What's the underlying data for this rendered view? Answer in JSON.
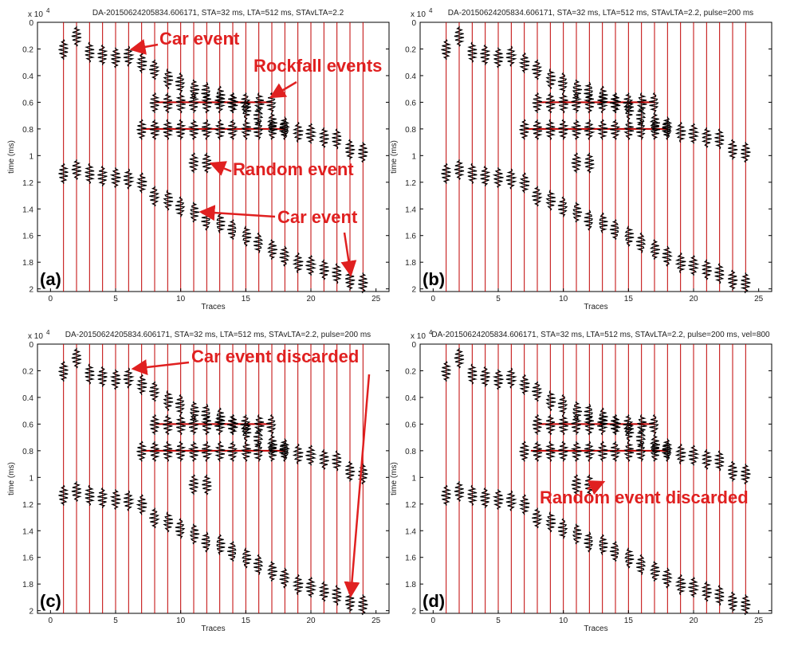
{
  "chart_data": [
    {
      "type": "trace",
      "title": "DA-20150624205834.606171, STA=32 ms, LTA=512 ms, STAvLTA=2.2",
      "panel_label": "(a)",
      "xlabel": "Traces",
      "ylabel": "time (ms)",
      "y_exp_base": "x 10",
      "y_exp": "4",
      "y_reversed": true,
      "xlim": [
        -1,
        26
      ],
      "ylim": [
        0,
        2.02
      ],
      "xticks": [
        0,
        5,
        10,
        15,
        20,
        25
      ],
      "yticks": [
        0,
        0.2,
        0.4,
        0.6,
        0.8,
        1,
        1.2,
        1.4,
        1.6,
        1.8,
        2
      ],
      "trace_color": "#c00000",
      "color": "#000000",
      "traces": [
        1,
        2,
        3,
        4,
        5,
        6,
        7,
        8,
        9,
        10,
        11,
        12,
        13,
        14,
        15,
        16,
        17,
        18,
        19,
        20,
        21,
        22,
        23,
        24
      ],
      "series": [
        {
          "x": [
            1,
            2,
            3,
            4,
            5,
            6,
            7,
            8,
            9,
            10,
            11,
            12,
            13,
            14,
            15,
            16,
            17,
            18,
            19,
            20,
            21,
            22,
            23,
            24
          ],
          "y": [
            0.2,
            0.1,
            0.22,
            0.24,
            0.26,
            0.25,
            0.3,
            0.35,
            0.42,
            0.45,
            0.5,
            0.52,
            0.55,
            0.6,
            0.65,
            0.7,
            0.75,
            0.78,
            0.82,
            0.83,
            0.86,
            0.87,
            0.95,
            0.97
          ]
        },
        {
          "x": [
            1,
            2,
            3,
            4,
            5,
            6,
            7,
            8,
            9,
            10,
            11,
            12,
            13,
            14,
            15,
            16,
            17,
            18,
            19,
            20,
            21,
            22,
            23,
            24
          ],
          "y": [
            1.13,
            1.1,
            1.13,
            1.15,
            1.16,
            1.17,
            1.2,
            1.3,
            1.33,
            1.38,
            1.42,
            1.48,
            1.5,
            1.55,
            1.6,
            1.65,
            1.7,
            1.75,
            1.8,
            1.82,
            1.85,
            1.88,
            1.93,
            1.95
          ]
        },
        {
          "x": [
            8,
            9,
            10,
            11,
            12,
            13,
            14,
            15,
            16,
            17
          ],
          "y": [
            0.6,
            0.6,
            0.6,
            0.6,
            0.6,
            0.6,
            0.6,
            0.6,
            0.6,
            0.6
          ]
        },
        {
          "x": [
            7,
            8,
            9,
            10,
            11,
            12,
            13,
            14,
            15,
            16,
            17,
            18
          ],
          "y": [
            0.8,
            0.8,
            0.8,
            0.8,
            0.8,
            0.8,
            0.8,
            0.8,
            0.8,
            0.8,
            0.8,
            0.8
          ]
        },
        {
          "x": [
            11,
            12
          ],
          "y": [
            1.05,
            1.05
          ]
        }
      ],
      "hlines": [
        {
          "y": 0.6,
          "x": [
            8,
            17
          ]
        },
        {
          "y": 0.8,
          "x": [
            7,
            18
          ]
        }
      ],
      "annotations": [
        {
          "text": "Car event"
        },
        {
          "text": "Rockfall events"
        },
        {
          "text": "Random event"
        },
        {
          "text": "Car event"
        }
      ]
    },
    {
      "type": "trace",
      "title": "DA-20150624205834.606171, STA=32 ms, LTA=512 ms, STAvLTA=2.2, pulse=200 ms",
      "panel_label": "(b)",
      "xlabel": "Traces",
      "ylabel": "time (ms)",
      "y_exp_base": "x 10",
      "y_exp": "4",
      "y_reversed": true,
      "xlim": [
        -1,
        26
      ],
      "ylim": [
        0,
        2.02
      ],
      "xticks": [
        0,
        5,
        10,
        15,
        20,
        25
      ],
      "yticks": [
        0,
        0.2,
        0.4,
        0.6,
        0.8,
        1,
        1.2,
        1.4,
        1.6,
        1.8,
        2
      ],
      "trace_color": "#c00000",
      "color": "#000000",
      "traces": [
        1,
        2,
        3,
        4,
        5,
        6,
        7,
        8,
        9,
        10,
        11,
        12,
        13,
        14,
        15,
        16,
        17,
        18,
        19,
        20,
        21,
        22,
        23,
        24
      ],
      "series": [
        {
          "x": [
            1,
            2,
            3,
            4,
            5,
            6,
            7,
            8,
            9,
            10,
            11,
            12,
            13,
            14,
            15,
            16,
            17,
            18,
            19,
            20,
            21,
            22,
            23,
            24
          ],
          "y": [
            0.2,
            0.1,
            0.22,
            0.24,
            0.26,
            0.25,
            0.3,
            0.35,
            0.42,
            0.45,
            0.5,
            0.52,
            0.55,
            0.6,
            0.65,
            0.7,
            0.75,
            0.78,
            0.82,
            0.83,
            0.86,
            0.87,
            0.95,
            0.97
          ]
        },
        {
          "x": [
            1,
            2,
            3,
            4,
            5,
            6,
            7,
            8,
            9,
            10,
            11,
            12,
            13,
            14,
            15,
            16,
            17,
            18,
            19,
            20,
            21,
            22,
            23,
            24
          ],
          "y": [
            1.13,
            1.1,
            1.13,
            1.15,
            1.16,
            1.17,
            1.2,
            1.3,
            1.33,
            1.38,
            1.42,
            1.48,
            1.5,
            1.55,
            1.6,
            1.65,
            1.7,
            1.75,
            1.8,
            1.82,
            1.85,
            1.88,
            1.93,
            1.95
          ]
        },
        {
          "x": [
            8,
            9,
            10,
            11,
            12,
            13,
            14,
            15,
            16,
            17
          ],
          "y": [
            0.6,
            0.6,
            0.6,
            0.6,
            0.6,
            0.6,
            0.6,
            0.6,
            0.6,
            0.6
          ]
        },
        {
          "x": [
            7,
            8,
            9,
            10,
            11,
            12,
            13,
            14,
            15,
            16,
            17,
            18
          ],
          "y": [
            0.8,
            0.8,
            0.8,
            0.8,
            0.8,
            0.8,
            0.8,
            0.8,
            0.8,
            0.8,
            0.8,
            0.8
          ]
        },
        {
          "x": [
            11,
            12
          ],
          "y": [
            1.05,
            1.05
          ]
        }
      ],
      "hlines": [
        {
          "y": 0.6,
          "x": [
            8,
            17
          ]
        },
        {
          "y": 0.8,
          "x": [
            7,
            18
          ]
        }
      ],
      "annotations": []
    },
    {
      "type": "trace",
      "title": "DA-20150624205834.606171, STA=32 ms, LTA=512 ms, STAvLTA=2.2, pulse=200 ms",
      "panel_label": "(c)",
      "xlabel": "Traces",
      "ylabel": "time (ms)",
      "y_exp_base": "x 10",
      "y_exp": "4",
      "y_reversed": true,
      "xlim": [
        -1,
        26
      ],
      "ylim": [
        0,
        2.02
      ],
      "xticks": [
        0,
        5,
        10,
        15,
        20,
        25
      ],
      "yticks": [
        0,
        0.2,
        0.4,
        0.6,
        0.8,
        1,
        1.2,
        1.4,
        1.6,
        1.8,
        2
      ],
      "trace_color": "#c00000",
      "color": "#000000",
      "traces": [
        1,
        2,
        3,
        4,
        5,
        6,
        7,
        8,
        9,
        10,
        11,
        12,
        13,
        14,
        15,
        16,
        17,
        18,
        19,
        20,
        21,
        22,
        23,
        24
      ],
      "series": [
        {
          "x": [
            1,
            2,
            3,
            4,
            5,
            6,
            7,
            8,
            9,
            10,
            11,
            12,
            13,
            14,
            15,
            16,
            17,
            18,
            19,
            20,
            21,
            22,
            23,
            24
          ],
          "y": [
            0.2,
            0.1,
            0.22,
            0.24,
            0.26,
            0.25,
            0.3,
            0.35,
            0.42,
            0.45,
            0.5,
            0.52,
            0.55,
            0.6,
            0.65,
            0.7,
            0.75,
            0.78,
            0.82,
            0.83,
            0.86,
            0.87,
            0.95,
            0.97
          ]
        },
        {
          "x": [
            1,
            2,
            3,
            4,
            5,
            6,
            7,
            8,
            9,
            10,
            11,
            12,
            13,
            14,
            15,
            16,
            17,
            18,
            19,
            20,
            21,
            22,
            23,
            24
          ],
          "y": [
            1.13,
            1.1,
            1.13,
            1.15,
            1.16,
            1.17,
            1.2,
            1.3,
            1.33,
            1.38,
            1.42,
            1.48,
            1.5,
            1.55,
            1.6,
            1.65,
            1.7,
            1.75,
            1.8,
            1.82,
            1.85,
            1.88,
            1.93,
            1.95
          ]
        },
        {
          "x": [
            8,
            9,
            10,
            11,
            12,
            13,
            14,
            15,
            16,
            17
          ],
          "y": [
            0.6,
            0.6,
            0.6,
            0.6,
            0.6,
            0.6,
            0.6,
            0.6,
            0.6,
            0.6
          ]
        },
        {
          "x": [
            7,
            8,
            9,
            10,
            11,
            12,
            13,
            14,
            15,
            16,
            17,
            18
          ],
          "y": [
            0.8,
            0.8,
            0.8,
            0.8,
            0.8,
            0.8,
            0.8,
            0.8,
            0.8,
            0.8,
            0.8,
            0.8
          ]
        },
        {
          "x": [
            11,
            12
          ],
          "y": [
            1.05,
            1.05
          ]
        }
      ],
      "hlines": [
        {
          "y": 0.6,
          "x": [
            8,
            17
          ]
        },
        {
          "y": 0.8,
          "x": [
            7,
            18
          ]
        }
      ],
      "annotations": [
        {
          "text": "Car event discarded"
        }
      ]
    },
    {
      "type": "trace",
      "title": "DA-20150624205834.606171, STA=32 ms, LTA=512 ms, STAvLTA=2.2, pulse=200 ms, vel=800",
      "panel_label": "(d)",
      "xlabel": "Traces",
      "ylabel": "time (ms)",
      "y_exp_base": "x 10",
      "y_exp": "4",
      "y_reversed": true,
      "xlim": [
        -1,
        26
      ],
      "ylim": [
        0,
        2.02
      ],
      "xticks": [
        0,
        5,
        10,
        15,
        20,
        25
      ],
      "yticks": [
        0,
        0.2,
        0.4,
        0.6,
        0.8,
        1,
        1.2,
        1.4,
        1.6,
        1.8,
        2
      ],
      "trace_color": "#c00000",
      "color": "#000000",
      "traces": [
        1,
        2,
        3,
        4,
        5,
        6,
        7,
        8,
        9,
        10,
        11,
        12,
        13,
        14,
        15,
        16,
        17,
        18,
        19,
        20,
        21,
        22,
        23,
        24
      ],
      "series": [
        {
          "x": [
            1,
            2,
            3,
            4,
            5,
            6,
            7,
            8,
            9,
            10,
            11,
            12,
            13,
            14,
            15,
            16,
            17,
            18,
            19,
            20,
            21,
            22,
            23,
            24
          ],
          "y": [
            0.2,
            0.1,
            0.22,
            0.24,
            0.26,
            0.25,
            0.3,
            0.35,
            0.42,
            0.45,
            0.5,
            0.52,
            0.55,
            0.6,
            0.65,
            0.7,
            0.75,
            0.78,
            0.82,
            0.83,
            0.86,
            0.87,
            0.95,
            0.97
          ]
        },
        {
          "x": [
            1,
            2,
            3,
            4,
            5,
            6,
            7,
            8,
            9,
            10,
            11,
            12,
            13,
            14,
            15,
            16,
            17,
            18,
            19,
            20,
            21,
            22,
            23,
            24
          ],
          "y": [
            1.13,
            1.1,
            1.13,
            1.15,
            1.16,
            1.17,
            1.2,
            1.3,
            1.33,
            1.38,
            1.42,
            1.48,
            1.5,
            1.55,
            1.6,
            1.65,
            1.7,
            1.75,
            1.8,
            1.82,
            1.85,
            1.88,
            1.93,
            1.95
          ]
        },
        {
          "x": [
            8,
            9,
            10,
            11,
            12,
            13,
            14,
            15,
            16,
            17
          ],
          "y": [
            0.6,
            0.6,
            0.6,
            0.6,
            0.6,
            0.6,
            0.6,
            0.6,
            0.6,
            0.6
          ]
        },
        {
          "x": [
            7,
            8,
            9,
            10,
            11,
            12,
            13,
            14,
            15,
            16,
            17,
            18
          ],
          "y": [
            0.8,
            0.8,
            0.8,
            0.8,
            0.8,
            0.8,
            0.8,
            0.8,
            0.8,
            0.8,
            0.8,
            0.8
          ]
        },
        {
          "x": [
            11,
            12
          ],
          "y": [
            1.05,
            1.05
          ]
        }
      ],
      "hlines": [
        {
          "y": 0.6,
          "x": [
            8,
            17
          ]
        },
        {
          "y": 0.8,
          "x": [
            7.5,
            18
          ]
        }
      ],
      "annotations": [
        {
          "text": "Random event discarded"
        }
      ]
    }
  ]
}
